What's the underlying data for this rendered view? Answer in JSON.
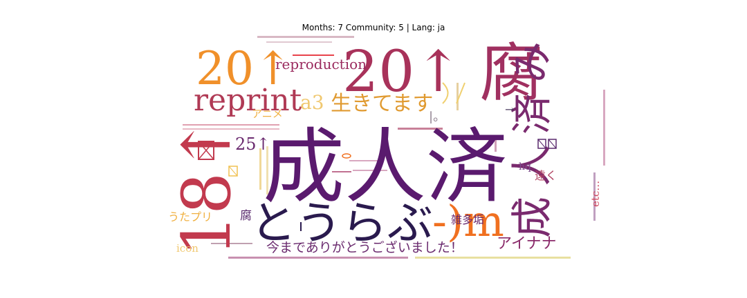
{
  "title": "Months: 7 Community: 5 | Lang: ja",
  "chart_data": {
    "type": "wordcloud",
    "title": "Months: 7 Community: 5 | Lang: ja",
    "words": [
      {
        "text": "成人済",
        "color": "#5a1a6e",
        "weight": 100
      },
      {
        "text": "20↑",
        "color": "#a8325a",
        "weight": 80
      },
      {
        "text": "腐",
        "color": "#a03060",
        "weight": 70
      },
      {
        "text": "20↑",
        "color": "#f0902a",
        "weight": 65
      },
      {
        "text": "18↑",
        "color": "#c23a4e",
        "weight": 75
      },
      {
        "text": "とうらぶ",
        "color": "#2a1a4e",
        "weight": 60
      },
      {
        "text": "成人済み",
        "color": "#7a2a6e",
        "weight": 55
      },
      {
        "text": "reprint",
        "color": "#b03a55",
        "weight": 45
      },
      {
        "text": "-)m",
        "color": "#f07020",
        "weight": 50
      },
      {
        "text": "生きてます",
        "color": "#e09a30",
        "weight": 30
      },
      {
        "text": "a3",
        "color": "#f0c870",
        "weight": 22
      },
      {
        "text": "reproduction",
        "color": "#9a2a5e",
        "weight": 18
      },
      {
        "text": "今までありがとうございました！",
        "color": "#6a2a6e",
        "weight": 18
      },
      {
        "text": "アイナナ",
        "color": "#8a2a6a",
        "weight": 20
      },
      {
        "text": "25↑",
        "color": "#6a2a6e",
        "weight": 18
      },
      {
        "text": "――",
        "color": "#e8424a",
        "weight": 20
      },
      {
        "text": "うたプリ",
        "color": "#f0b040",
        "weight": 15
      },
      {
        "text": "雑多垢",
        "color": "#6a2a6e",
        "weight": 14
      },
      {
        "text": "アニメ",
        "color": "#f0b040",
        "weight": 12
      },
      {
        "text": "遠く",
        "color": "#b04060",
        "weight": 12
      },
      {
        "text": "hq",
        "color": "#7a4a8a",
        "weight": 12
      },
      {
        "text": "icon",
        "color": "#f0c870",
        "weight": 12
      },
      {
        "text": "etc…",
        "color": "#d04a60",
        "weight": 12
      },
      {
        "text": "腐",
        "color": "#5a2a6e",
        "weight": 14
      },
      {
        "text": "→",
        "color": "#4a3a5e",
        "weight": 12
      },
      {
        "text": "|。",
        "color": "#8a7a8a",
        "weight": 12
      }
    ]
  }
}
